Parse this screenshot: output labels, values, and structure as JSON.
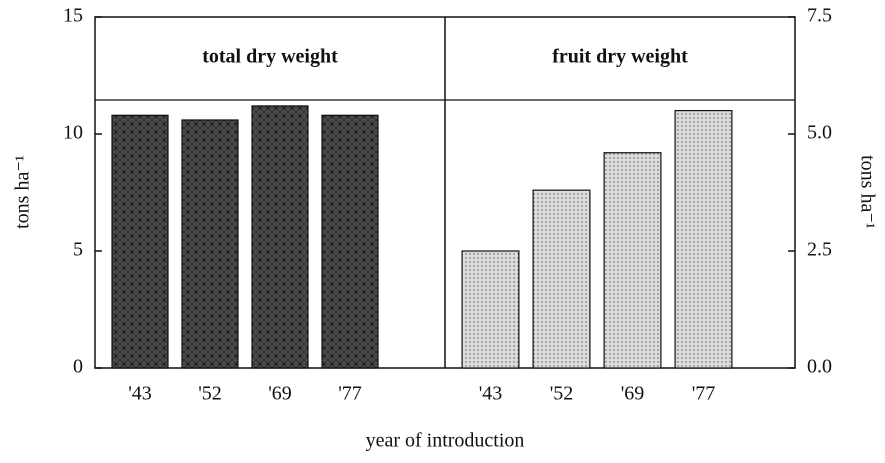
{
  "chart_data": [
    {
      "type": "bar",
      "title": "total dry weight",
      "categories": [
        "'43",
        "'52",
        "'69",
        "'77"
      ],
      "values": [
        10.8,
        10.6,
        11.2,
        10.8
      ],
      "color": "#555555",
      "ylim": [
        0,
        15
      ],
      "yticks": [
        0,
        5,
        10,
        15
      ],
      "ylabel": "tons ha⁻¹",
      "xlabel": "year of introduction"
    },
    {
      "type": "bar",
      "title": "fruit dry weight",
      "categories": [
        "'43",
        "'52",
        "'69",
        "'77"
      ],
      "values": [
        2.5,
        3.8,
        4.6,
        5.5
      ],
      "color": "#dddddd",
      "axis": "y2",
      "y2lim": [
        0,
        7.5
      ],
      "y2ticks": [
        {
          "value": 0,
          "label": "0.0"
        },
        2.5,
        {
          "value": 5,
          "label": "5.0"
        },
        7.5
      ],
      "y2label": "tons ha⁻¹"
    }
  ]
}
